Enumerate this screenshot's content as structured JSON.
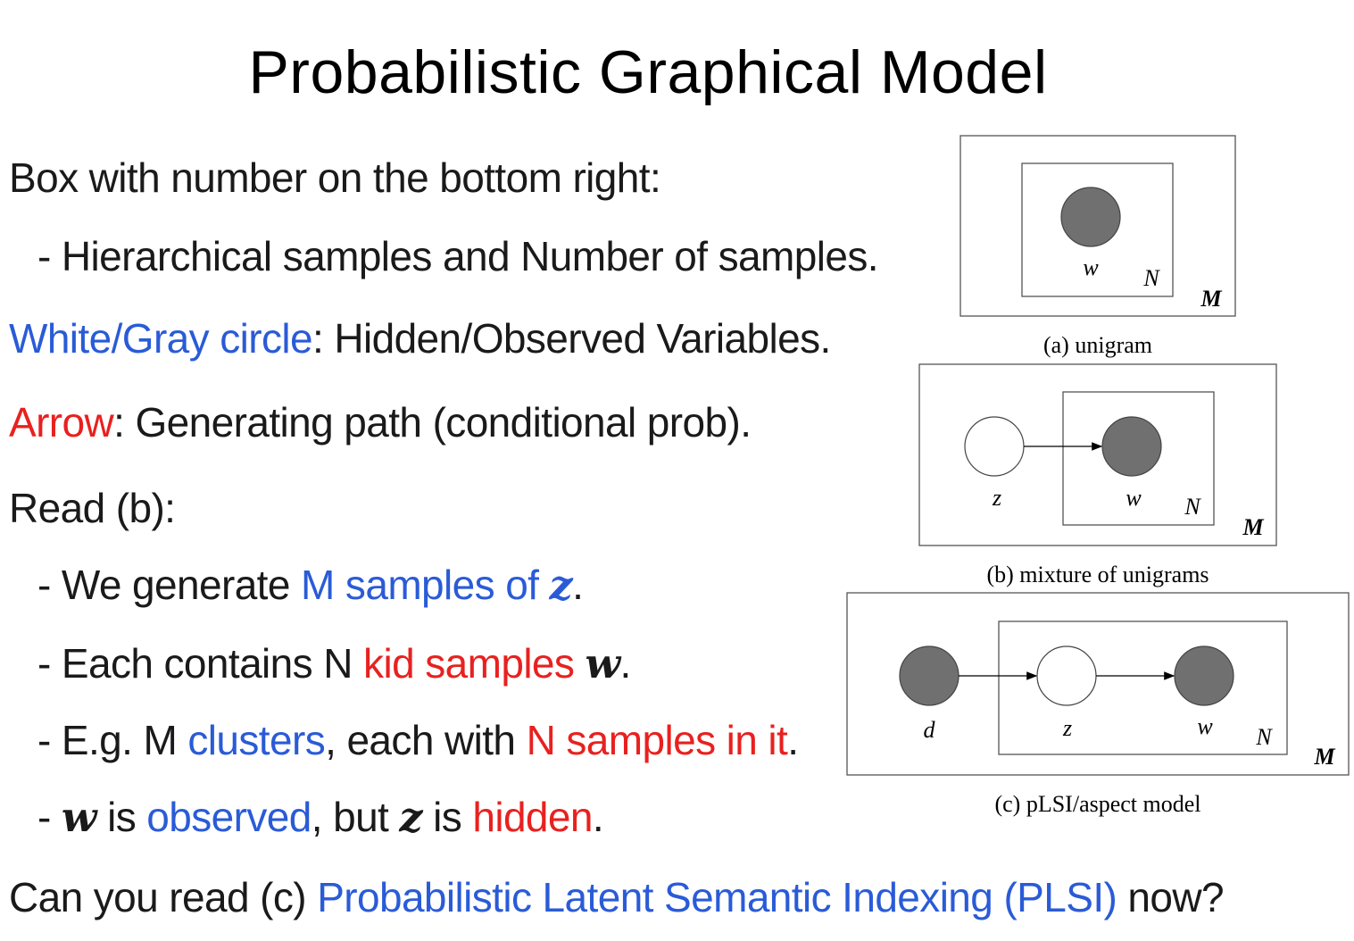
{
  "title": "Probabilistic Graphical Model",
  "lines": {
    "l1": {
      "a": "Box",
      "b": " with number on the bottom right:"
    },
    "l2": {
      "a": "- Hierarchical samples and Number of samples."
    },
    "l3": {
      "a": "White/Gray ",
      "b": "circle",
      "c": ": Hidden/Observed Variables."
    },
    "l4": {
      "a": "Arrow",
      "b": ": Generating path (conditional prob)."
    },
    "l5": {
      "a": "Read (b):"
    },
    "l6": {
      "a": "- We generate ",
      "b": "M samples of ",
      "c": "z",
      "d": "."
    },
    "l7": {
      "a": "- Each contains N ",
      "b": "kid samples ",
      "c": "w",
      "d": "."
    },
    "l8": {
      "a": "- E.g. M ",
      "b": "clusters",
      "c": ", each with ",
      "d": "N samples in it",
      "e": "."
    },
    "l9": {
      "a": "- ",
      "b": "w",
      "c": " is ",
      "d": "observed",
      "e": ", but ",
      "f": "z",
      "g": " is ",
      "h": "hidden",
      "i": "."
    },
    "l10": {
      "a": "Can you read (c) ",
      "b": "Probabilistic Latent Semantic Indexing (PLSI)",
      "c": " now?"
    }
  },
  "figures": {
    "a": {
      "caption": "(a) unigram",
      "w": "w",
      "N": "N",
      "M": "M"
    },
    "b": {
      "caption": "(b) mixture of unigrams",
      "z": "z",
      "w": "w",
      "N": "N",
      "M": "M"
    },
    "c": {
      "caption": "(c) pLSI/aspect model",
      "d": "d",
      "z": "z",
      "w": "w",
      "N": "N",
      "M": "M"
    }
  },
  "colors": {
    "blue": "#2a5bd7",
    "red": "#e8211f",
    "gray_node": "#707070"
  }
}
